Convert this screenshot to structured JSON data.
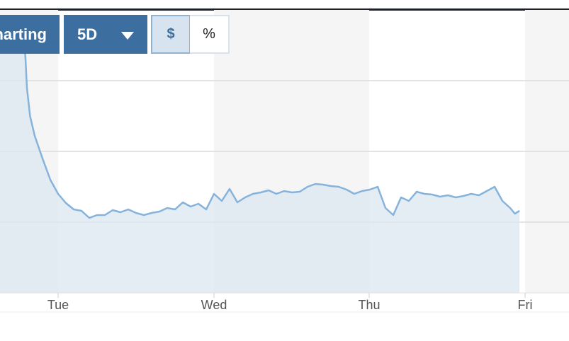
{
  "controls": {
    "charting_label": "harting",
    "range_label": "5D",
    "dollar_label": "$",
    "percent_label": "%",
    "active_mode": "$"
  },
  "colors": {
    "accent": "#3c6e9f",
    "line": "#86b3dc",
    "area": "#dbe7f0",
    "alt_band": "#f5f5f5"
  },
  "chart_data": {
    "type": "area",
    "categories": [
      "Tue",
      "Wed",
      "Thu",
      "Fri"
    ],
    "grid": true,
    "ylim": [
      0,
      4
    ],
    "y_ticks_shown": false,
    "series": [
      {
        "values": [
          [
            0.0,
            3.62
          ],
          [
            0.05,
            3.65
          ],
          [
            0.1,
            3.62
          ],
          [
            0.15,
            3.66
          ],
          [
            0.2,
            3.64
          ],
          [
            0.25,
            3.67
          ],
          [
            0.3,
            3.69
          ],
          [
            0.35,
            3.66
          ],
          [
            0.4,
            3.7
          ],
          [
            0.45,
            3.72
          ],
          [
            0.5,
            3.66
          ],
          [
            0.55,
            3.62
          ],
          [
            0.6,
            3.57
          ],
          [
            0.65,
            3.6
          ],
          [
            0.7,
            3.54
          ],
          [
            0.75,
            3.56
          ],
          [
            0.78,
            3.52
          ],
          [
            0.79,
            3.35
          ],
          [
            0.8,
            2.9
          ],
          [
            0.82,
            2.5
          ],
          [
            0.85,
            2.22
          ],
          [
            0.9,
            1.9
          ],
          [
            0.95,
            1.6
          ],
          [
            1.0,
            1.4
          ],
          [
            1.05,
            1.27
          ],
          [
            1.1,
            1.18
          ],
          [
            1.15,
            1.16
          ],
          [
            1.2,
            1.06
          ],
          [
            1.25,
            1.1
          ],
          [
            1.3,
            1.1
          ],
          [
            1.35,
            1.17
          ],
          [
            1.4,
            1.14
          ],
          [
            1.45,
            1.18
          ],
          [
            1.5,
            1.13
          ],
          [
            1.55,
            1.1
          ],
          [
            1.6,
            1.13
          ],
          [
            1.65,
            1.15
          ],
          [
            1.7,
            1.2
          ],
          [
            1.75,
            1.18
          ],
          [
            1.8,
            1.28
          ],
          [
            1.85,
            1.22
          ],
          [
            1.9,
            1.26
          ],
          [
            1.95,
            1.18
          ],
          [
            2.0,
            1.4
          ],
          [
            2.05,
            1.3
          ],
          [
            2.1,
            1.47
          ],
          [
            2.15,
            1.28
          ],
          [
            2.2,
            1.35
          ],
          [
            2.25,
            1.4
          ],
          [
            2.3,
            1.42
          ],
          [
            2.35,
            1.45
          ],
          [
            2.4,
            1.4
          ],
          [
            2.45,
            1.44
          ],
          [
            2.5,
            1.42
          ],
          [
            2.55,
            1.43
          ],
          [
            2.6,
            1.5
          ],
          [
            2.65,
            1.54
          ],
          [
            2.7,
            1.53
          ],
          [
            2.75,
            1.51
          ],
          [
            2.8,
            1.5
          ],
          [
            2.85,
            1.46
          ],
          [
            2.9,
            1.4
          ],
          [
            2.95,
            1.44
          ],
          [
            3.0,
            1.46
          ],
          [
            3.05,
            1.5
          ],
          [
            3.1,
            1.2
          ],
          [
            3.15,
            1.1
          ],
          [
            3.2,
            1.35
          ],
          [
            3.25,
            1.3
          ],
          [
            3.3,
            1.43
          ],
          [
            3.35,
            1.4
          ],
          [
            3.4,
            1.39
          ],
          [
            3.45,
            1.36
          ],
          [
            3.5,
            1.38
          ],
          [
            3.55,
            1.35
          ],
          [
            3.6,
            1.37
          ],
          [
            3.65,
            1.4
          ],
          [
            3.7,
            1.38
          ],
          [
            3.75,
            1.44
          ],
          [
            3.8,
            1.5
          ],
          [
            3.85,
            1.3
          ],
          [
            3.9,
            1.2
          ],
          [
            3.93,
            1.12
          ],
          [
            3.96,
            1.16
          ]
        ]
      }
    ]
  }
}
